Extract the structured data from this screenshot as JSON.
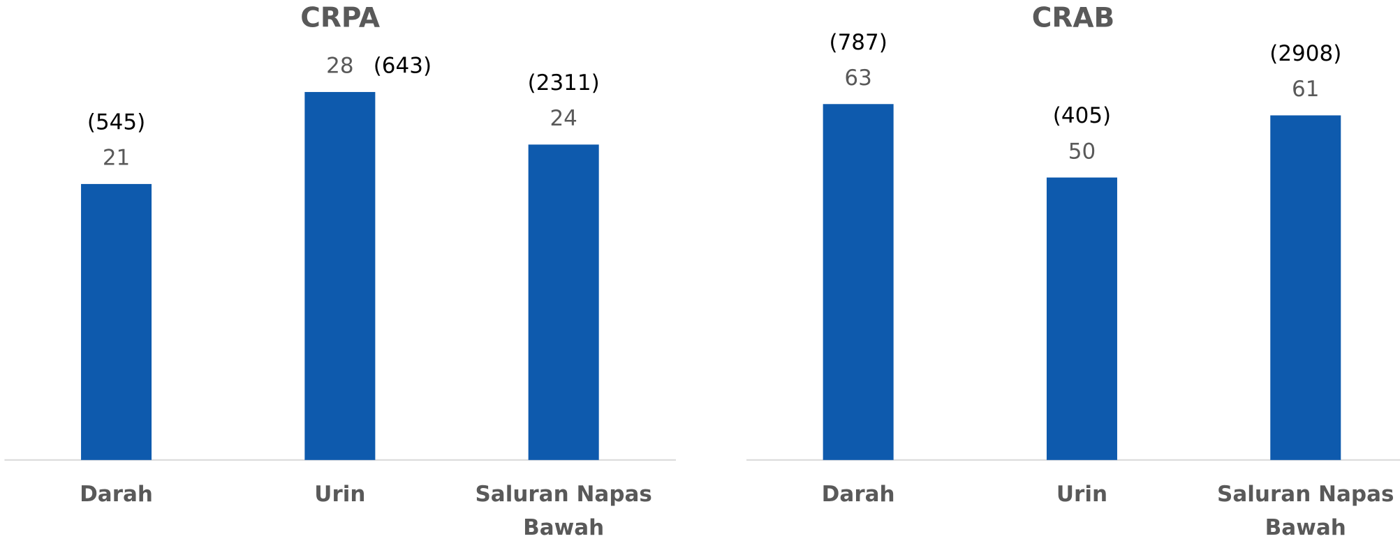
{
  "chart_data": [
    {
      "type": "bar",
      "title": "CRPA",
      "categories": [
        "Darah",
        "Urin",
        "Saluran Napas Bawah"
      ],
      "values": [
        21,
        28,
        24
      ],
      "count_labels": [
        "(545)",
        "(643)",
        "(2311)"
      ],
      "color": "#0e5aad",
      "ylim": [
        0,
        35
      ]
    },
    {
      "type": "bar",
      "title": "CRAB",
      "categories": [
        "Darah",
        "Urin",
        "Saluran Napas Bawah"
      ],
      "values": [
        63,
        50,
        61
      ],
      "count_labels": [
        "(787)",
        "(405)",
        "(2908)"
      ],
      "color": "#0e5aad",
      "ylim": [
        0,
        80
      ]
    }
  ]
}
